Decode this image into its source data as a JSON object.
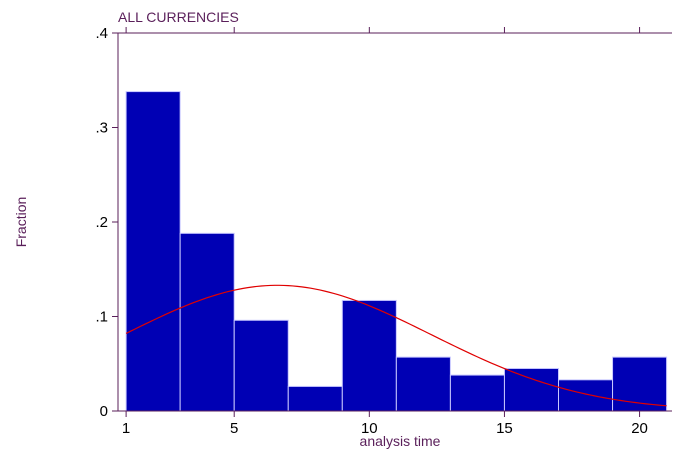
{
  "chart_data": {
    "type": "bar",
    "title": "ALL CURRENCIES",
    "xlabel": "analysis time",
    "ylabel": "Fraction",
    "xlim": [
      0.7,
      21.2
    ],
    "ylim": [
      0,
      0.4
    ],
    "x_ticks": [
      {
        "value": 1,
        "label": "1"
      },
      {
        "value": 5,
        "label": "5"
      },
      {
        "value": 10,
        "label": "10"
      },
      {
        "value": 15,
        "label": "15"
      },
      {
        "value": 20,
        "label": "20"
      }
    ],
    "y_ticks": [
      {
        "value": 0,
        "label": "0"
      },
      {
        "value": 0.1,
        "label": ".1"
      },
      {
        "value": 0.2,
        "label": ".2"
      },
      {
        "value": 0.3,
        "label": ".3"
      },
      {
        "value": 0.4,
        "label": ".4"
      }
    ],
    "bins": [
      {
        "x0": 1,
        "x1": 3,
        "value": 0.338
      },
      {
        "x0": 3,
        "x1": 5,
        "value": 0.188
      },
      {
        "x0": 5,
        "x1": 7,
        "value": 0.096
      },
      {
        "x0": 7,
        "x1": 9,
        "value": 0.026
      },
      {
        "x0": 9,
        "x1": 11,
        "value": 0.117
      },
      {
        "x0": 11,
        "x1": 13,
        "value": 0.057
      },
      {
        "x0": 13,
        "x1": 15,
        "value": 0.038
      },
      {
        "x0": 15,
        "x1": 17,
        "value": 0.045
      },
      {
        "x0": 17,
        "x1": 19,
        "value": 0.033
      },
      {
        "x0": 19,
        "x1": 21,
        "value": 0.057
      }
    ],
    "density_curve": {
      "type": "normal",
      "mean": 6.6,
      "sd": 5.7,
      "peak": 0.133,
      "x_range": [
        1,
        21
      ],
      "color": "#e00000"
    },
    "bar_color": "#0000b4",
    "bar_edge_color": "#c8c8ff",
    "axis_color": "#5a1f5a",
    "grid": false
  }
}
